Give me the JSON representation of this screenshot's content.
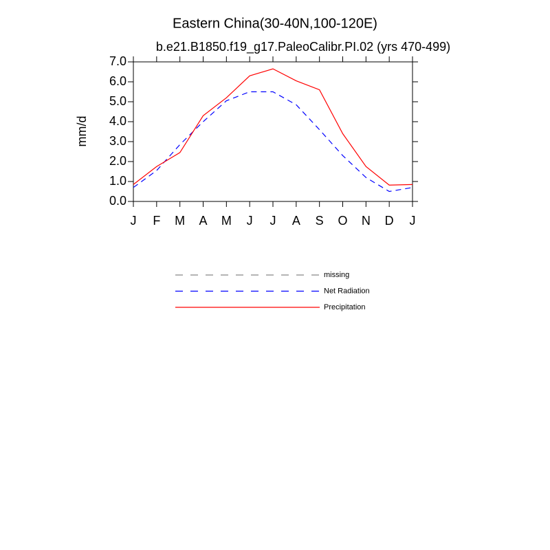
{
  "chart_data": {
    "type": "line",
    "title": "Eastern China(30-40N,100-120E)",
    "subtitle": "b.e21.B1850.f19_g17.PaleoCalibr.PI.02 (yrs 470-499)",
    "y_label": "mm/d",
    "categories": [
      "J",
      "F",
      "M",
      "A",
      "M",
      "J",
      "J",
      "A",
      "S",
      "O",
      "N",
      "D",
      "J"
    ],
    "ylim": [
      0,
      7
    ],
    "yticks": [
      {
        "value": 0,
        "label": "0.0"
      },
      {
        "value": 1,
        "label": "1.0"
      },
      {
        "value": 2,
        "label": "2.0"
      },
      {
        "value": 3,
        "label": "3.0"
      },
      {
        "value": 4,
        "label": "4.0"
      },
      {
        "value": 5,
        "label": "5.0"
      },
      {
        "value": 6,
        "label": "6.0"
      },
      {
        "value": 7,
        "label": "7.0"
      }
    ],
    "series": [
      {
        "name": "missing",
        "color": "#888888",
        "dash": true,
        "values": [
          null,
          null,
          null,
          null,
          null,
          null,
          null,
          null,
          null,
          null,
          null,
          null,
          null
        ]
      },
      {
        "name": "Net Radiation",
        "color": "#0000ff",
        "dash": true,
        "values": [
          0.7,
          1.55,
          2.85,
          4.0,
          5.05,
          5.5,
          5.5,
          4.85,
          3.6,
          2.3,
          1.2,
          0.5,
          0.7
        ]
      },
      {
        "name": "Precipitation",
        "color": "#ff0000",
        "dash": false,
        "values": [
          0.85,
          1.75,
          2.45,
          4.3,
          5.2,
          6.3,
          6.65,
          6.05,
          5.6,
          3.4,
          1.75,
          0.82,
          0.85
        ]
      }
    ]
  }
}
